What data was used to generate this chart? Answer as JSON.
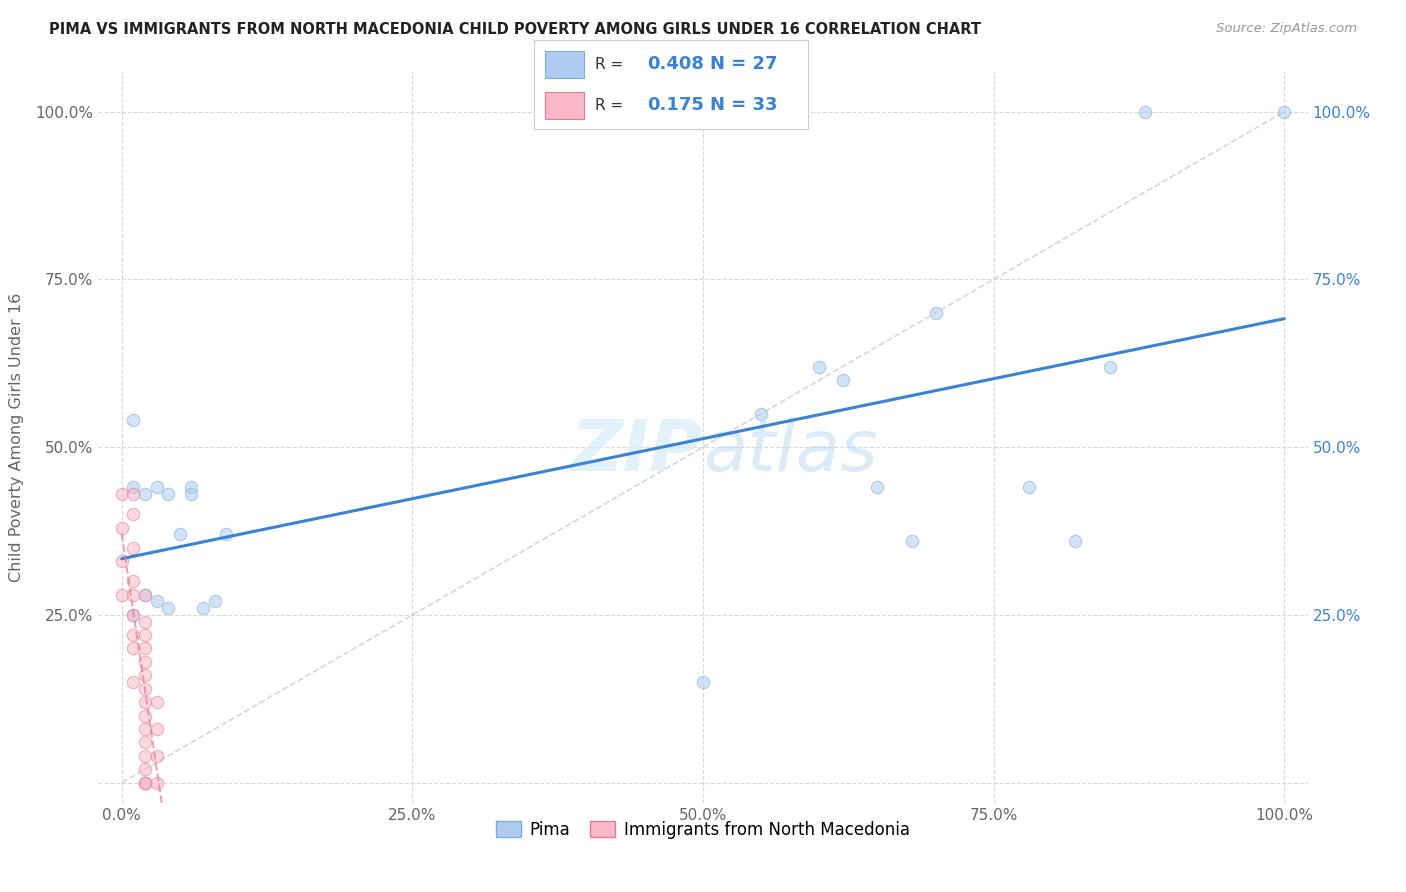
{
  "title": "PIMA VS IMMIGRANTS FROM NORTH MACEDONIA CHILD POVERTY AMONG GIRLS UNDER 16 CORRELATION CHART",
  "source": "Source: ZipAtlas.com",
  "ylabel": "Child Poverty Among Girls Under 16",
  "watermark": "ZIPatlas",
  "pima_R": 0.408,
  "pima_N": 27,
  "immig_R": 0.175,
  "immig_N": 33,
  "pima_color": "#aeccf0",
  "pima_edge_color": "#7aaee0",
  "immig_color": "#f8b8c8",
  "immig_edge_color": "#e87898",
  "pima_line_color": "#3a82d4",
  "immig_line_color": "#e87898",
  "diagonal_color": "#cccccc",
  "pima_x": [
    0.01,
    0.01,
    0.01,
    0.02,
    0.02,
    0.03,
    0.03,
    0.04,
    0.04,
    0.05,
    0.06,
    0.06,
    0.07,
    0.08,
    0.09,
    0.5,
    0.55,
    0.6,
    0.62,
    0.65,
    0.68,
    0.7,
    0.78,
    0.82,
    0.85,
    0.88,
    1.0
  ],
  "pima_y": [
    0.54,
    0.44,
    0.25,
    0.28,
    0.43,
    0.27,
    0.44,
    0.43,
    0.26,
    0.37,
    0.44,
    0.43,
    0.26,
    0.27,
    0.37,
    0.15,
    0.55,
    0.62,
    0.6,
    0.44,
    0.36,
    0.7,
    0.44,
    0.36,
    0.62,
    1.0,
    1.0
  ],
  "immig_x": [
    0.0,
    0.0,
    0.0,
    0.0,
    0.01,
    0.01,
    0.01,
    0.01,
    0.01,
    0.01,
    0.01,
    0.01,
    0.01,
    0.02,
    0.02,
    0.02,
    0.02,
    0.02,
    0.02,
    0.02,
    0.02,
    0.02,
    0.02,
    0.02,
    0.02,
    0.02,
    0.02,
    0.02,
    0.02,
    0.03,
    0.03,
    0.03,
    0.03
  ],
  "immig_y": [
    0.43,
    0.38,
    0.33,
    0.28,
    0.43,
    0.4,
    0.35,
    0.3,
    0.28,
    0.25,
    0.22,
    0.2,
    0.15,
    0.28,
    0.24,
    0.22,
    0.2,
    0.18,
    0.16,
    0.14,
    0.12,
    0.1,
    0.08,
    0.06,
    0.04,
    0.02,
    0.0,
    0.0,
    0.0,
    0.12,
    0.08,
    0.04,
    0.0
  ],
  "xlim": [
    0.0,
    1.0
  ],
  "ylim": [
    0.0,
    1.0
  ],
  "xticks": [
    0.0,
    0.25,
    0.5,
    0.75,
    1.0
  ],
  "yticks": [
    0.0,
    0.25,
    0.5,
    0.75,
    1.0
  ],
  "xtick_labels": [
    "0.0%",
    "25.0%",
    "50.0%",
    "75.0%",
    "100.0%"
  ],
  "ytick_labels": [
    "",
    "25.0%",
    "50.0%",
    "75.0%",
    "100.0%"
  ],
  "right_ytick_labels": [
    "",
    "25.0%",
    "50.0%",
    "75.0%",
    "100.0%"
  ],
  "bg_color": "#ffffff",
  "grid_color": "#d8d8d8",
  "marker_size": 80,
  "marker_alpha": 0.55,
  "marker_linewidth": 0.8
}
